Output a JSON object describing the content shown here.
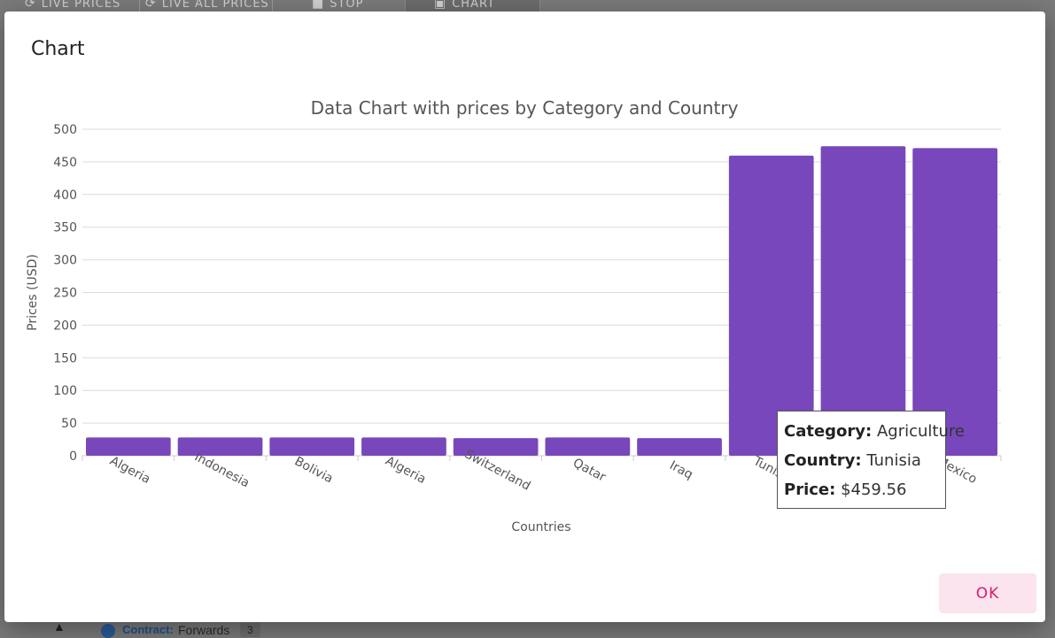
{
  "background": {
    "toolbar": {
      "live_prices_label": "LIVE PRICES",
      "live_all_prices_label": "LIVE ALL PRICES",
      "stop_label": "STOP",
      "chart_label": "CHART"
    },
    "footer": {
      "contract_label": "Contract:",
      "contract_value": "Forwards",
      "contract_count": "3"
    }
  },
  "dialog": {
    "title": "Chart",
    "ok_label": "OK"
  },
  "tooltip": {
    "category_label": "Category:",
    "category_value": "Agriculture",
    "country_label": "Country:",
    "country_value": "Tunisia",
    "price_label": "Price:",
    "price_value": "$459.56"
  },
  "colors": {
    "bar": "#7747bb",
    "ok_text": "#d81b72",
    "ok_bg": "#fbe4ee"
  },
  "chart_data": {
    "type": "bar",
    "title": "Data Chart with prices by Category and Country",
    "xlabel": "Countries",
    "ylabel": "Prices (USD)",
    "ylim": [
      0,
      500
    ],
    "yticks": [
      0,
      50,
      100,
      150,
      200,
      250,
      300,
      350,
      400,
      450,
      500
    ],
    "categories": [
      "Algeria",
      "Indonesia",
      "Bolivia",
      "Algeria",
      "Switzerland",
      "Qatar",
      "Iraq",
      "Tunisia",
      "",
      "Mexico"
    ],
    "values": [
      28,
      28,
      28,
      28,
      27,
      28,
      27,
      459.56,
      474,
      471
    ],
    "grid": true
  }
}
